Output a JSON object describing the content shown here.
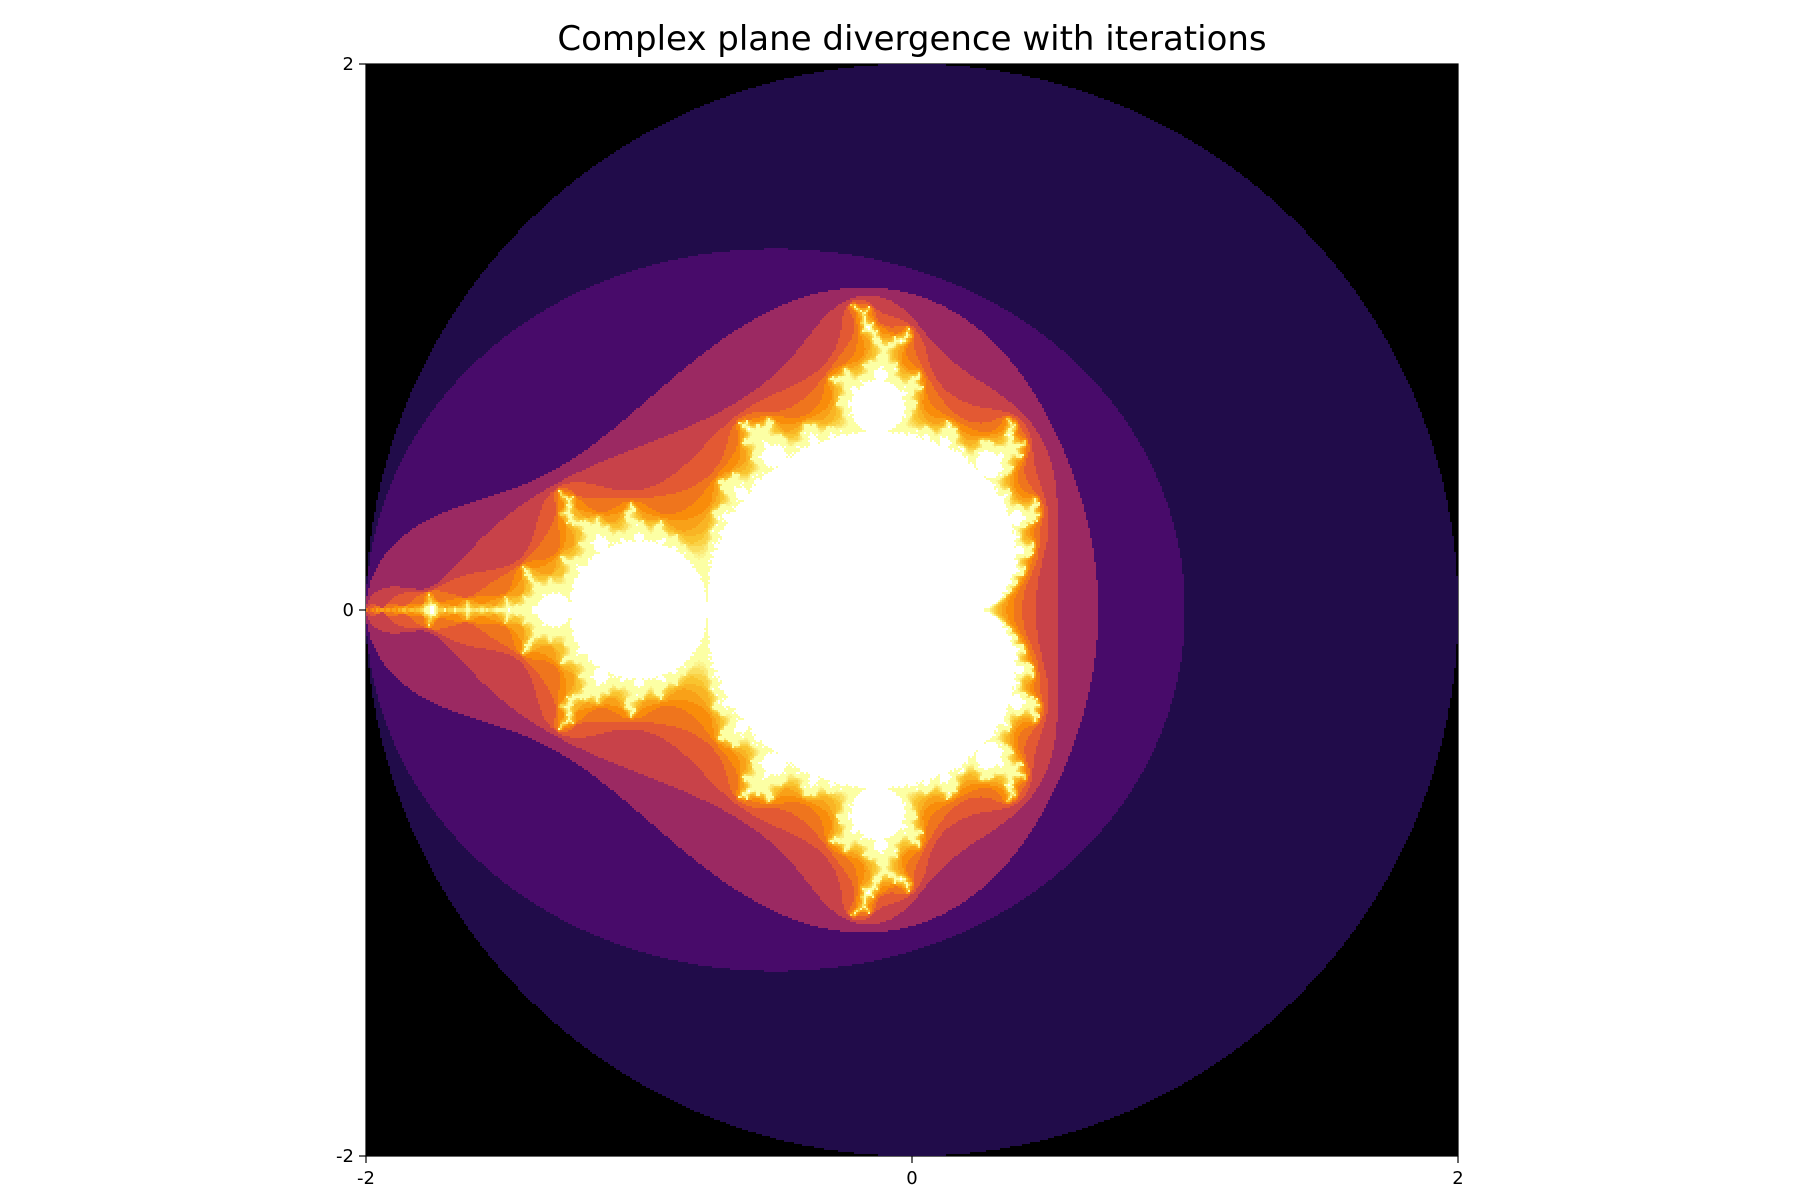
{
  "chart_data": {
    "type": "heatmap",
    "title": "Complex plane divergence with iterations",
    "xlabel": "",
    "ylabel": "",
    "xlim": [
      -2,
      2
    ],
    "ylim": [
      -2,
      2
    ],
    "x_ticks": [
      {
        "value": -2,
        "label": "-2"
      },
      {
        "value": 0,
        "label": "0"
      },
      {
        "value": 2,
        "label": "2"
      }
    ],
    "y_ticks": [
      {
        "value": 2,
        "label": "2"
      },
      {
        "value": 0,
        "label": "0"
      },
      {
        "value": -2,
        "label": "-2"
      }
    ],
    "grid": false,
    "legend": "none",
    "colormap": "inferno",
    "escape_radius": 2,
    "max_iterations": 100,
    "colors": {
      "outside": "#000000",
      "inside": "#ffffff",
      "iteration_0": "#000000",
      "iteration_1": "#210c4a",
      "iteration_2": "#480b6a",
      "iteration_high": "#fcffa4"
    }
  }
}
